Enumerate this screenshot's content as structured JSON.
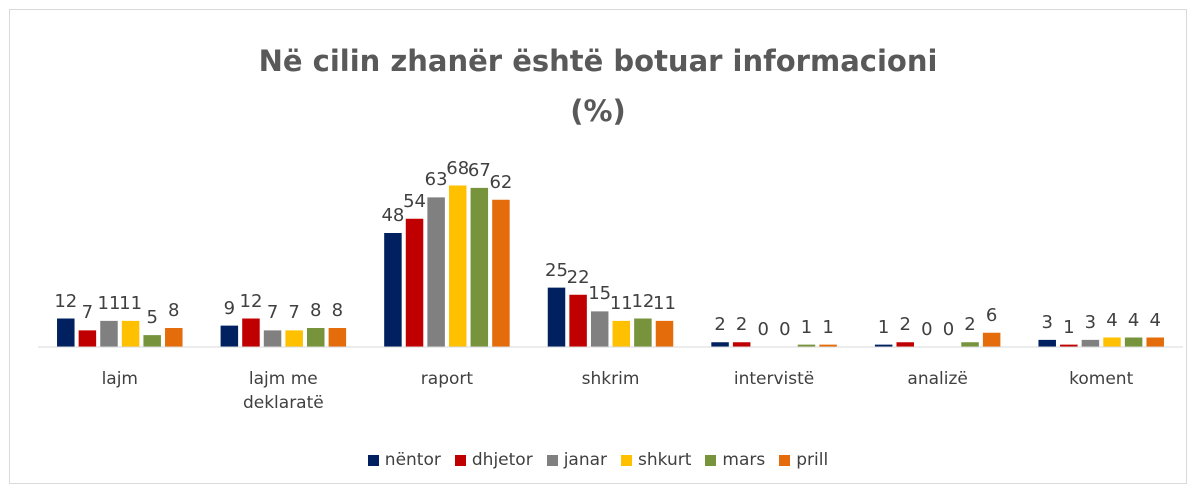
{
  "chart_data": {
    "type": "bar",
    "title": "Në cilin zhanër është botuar informacioni (%)",
    "categories": [
      "lajm",
      "lajm me deklaratë",
      "raport",
      "shkrim",
      "intervistë",
      "analizë",
      "koment"
    ],
    "series": [
      {
        "name": "nëntor",
        "color": "#002060",
        "values": [
          12,
          9,
          48,
          25,
          2,
          1,
          3
        ]
      },
      {
        "name": "dhjetor",
        "color": "#c00000",
        "values": [
          7,
          12,
          54,
          22,
          2,
          2,
          1
        ]
      },
      {
        "name": "janar",
        "color": "#808080",
        "values": [
          11,
          7,
          63,
          15,
          0,
          0,
          3
        ]
      },
      {
        "name": "shkurt",
        "color": "#ffc000",
        "values": [
          11,
          7,
          68,
          11,
          0,
          0,
          4
        ]
      },
      {
        "name": "mars",
        "color": "#77933c",
        "values": [
          5,
          8,
          67,
          12,
          1,
          2,
          4
        ]
      },
      {
        "name": "prill",
        "color": "#e46c0a",
        "values": [
          8,
          8,
          62,
          11,
          1,
          6,
          4
        ]
      }
    ],
    "ylim": [
      0,
      80
    ],
    "legend": "bottom"
  }
}
